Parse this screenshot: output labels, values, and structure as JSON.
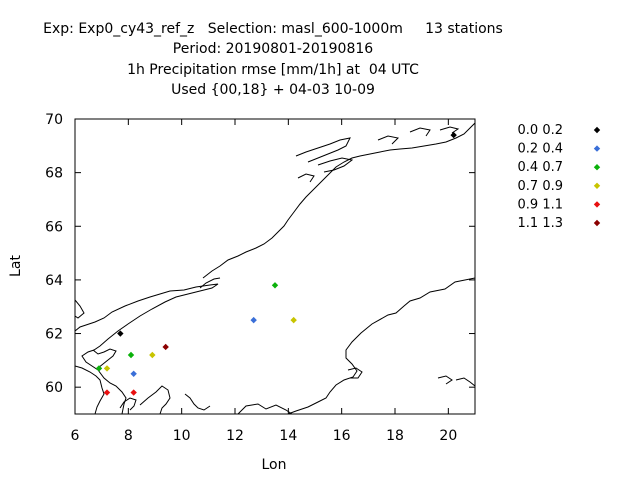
{
  "header": {
    "line1": "Exp: Exp0_cy43_ref_z   Selection: masl_600-1000m     13 stations",
    "line2": "Period: 20190801-20190816",
    "line3": "1h Precipitation rmse [mm/1h] at  04 UTC",
    "line4": "Used {00,18} + 04-03 10-09"
  },
  "chart_data": {
    "type": "scatter",
    "xlabel": "Lon",
    "ylabel": "Lat",
    "xlim": [
      6,
      21
    ],
    "ylim": [
      59,
      70
    ],
    "xticks": [
      6,
      8,
      10,
      12,
      14,
      16,
      18,
      20
    ],
    "yticks": [
      60,
      62,
      64,
      66,
      68,
      70
    ],
    "legend_position": "right",
    "classes": [
      {
        "label": "0.0 0.2",
        "color": "#000000"
      },
      {
        "label": "0.2 0.4",
        "color": "#3a6fd8"
      },
      {
        "label": "0.4 0.7",
        "color": "#0bb10b"
      },
      {
        "label": "0.7 0.9",
        "color": "#c8c400"
      },
      {
        "label": "0.9 1.1",
        "color": "#e81010"
      },
      {
        "label": "1.1 1.3",
        "color": "#8b0000"
      }
    ],
    "points": [
      {
        "lon": 20.2,
        "lat": 69.4,
        "class": 0
      },
      {
        "lon": 7.7,
        "lat": 62.0,
        "class": 0
      },
      {
        "lon": 12.7,
        "lat": 62.5,
        "class": 1
      },
      {
        "lon": 8.2,
        "lat": 60.5,
        "class": 1
      },
      {
        "lon": 13.5,
        "lat": 63.8,
        "class": 2
      },
      {
        "lon": 8.1,
        "lat": 61.2,
        "class": 2
      },
      {
        "lon": 6.9,
        "lat": 60.7,
        "class": 2
      },
      {
        "lon": 14.2,
        "lat": 62.5,
        "class": 3
      },
      {
        "lon": 8.9,
        "lat": 61.2,
        "class": 3
      },
      {
        "lon": 7.2,
        "lat": 60.7,
        "class": 3
      },
      {
        "lon": 7.2,
        "lat": 59.8,
        "class": 4
      },
      {
        "lon": 8.2,
        "lat": 59.8,
        "class": 4
      },
      {
        "lon": 9.4,
        "lat": 61.5,
        "class": 5
      }
    ]
  }
}
